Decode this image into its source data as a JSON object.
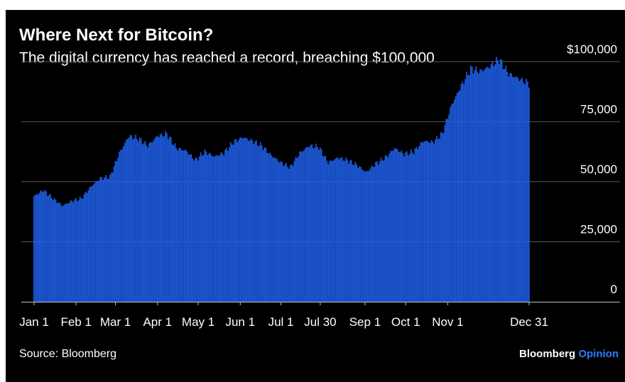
{
  "chart_data": {
    "type": "bar",
    "title": "Where Next for Bitcoin?",
    "subtitle": "The digital currency has reached a record, breaching $100,000",
    "source": "Source: Bloomberg",
    "brand": {
      "primary": "Bloomberg",
      "accent": "Opinion"
    },
    "colors": {
      "background": "#000000",
      "bar": "#1f5fe8",
      "grid": "#5a5a5a",
      "text": "#ffffff",
      "brand_accent": "#2b7cff"
    },
    "ylim": [
      0,
      110000
    ],
    "y_ticks": [
      {
        "value": 100000,
        "label": "$100,000"
      },
      {
        "value": 75000,
        "label": "75,000"
      },
      {
        "value": 50000,
        "label": "50,000"
      },
      {
        "value": 25000,
        "label": "25,000"
      },
      {
        "value": 0,
        "label": "0"
      }
    ],
    "x_ticks": [
      {
        "date": "2024-01-01",
        "label": "Jan 1"
      },
      {
        "date": "2024-02-01",
        "label": "Feb 1"
      },
      {
        "date": "2024-03-01",
        "label": "Mar 1"
      },
      {
        "date": "2024-04-01",
        "label": "Apr 1"
      },
      {
        "date": "2024-05-01",
        "label": "May 1"
      },
      {
        "date": "2024-06-01",
        "label": "Jun 1"
      },
      {
        "date": "2024-07-01",
        "label": "Jul 1"
      },
      {
        "date": "2024-07-30",
        "label": "Jul 30"
      },
      {
        "date": "2024-09-01",
        "label": "Sep 1"
      },
      {
        "date": "2024-10-01",
        "label": "Oct 1"
      },
      {
        "date": "2024-11-01",
        "label": "Nov 1"
      },
      {
        "date": "2024-12-31",
        "label": "Dec 31"
      }
    ],
    "grid": true,
    "series": [
      {
        "x": [
          "2024-01-01",
          "2024-01-08",
          "2024-01-15",
          "2024-01-22",
          "2024-01-29",
          "2024-02-05",
          "2024-02-12",
          "2024-02-19",
          "2024-02-26",
          "2024-03-04",
          "2024-03-11",
          "2024-03-18",
          "2024-03-25",
          "2024-04-01",
          "2024-04-08",
          "2024-04-15",
          "2024-04-22",
          "2024-04-29",
          "2024-05-06",
          "2024-05-13",
          "2024-05-20",
          "2024-05-27",
          "2024-06-03",
          "2024-06-10",
          "2024-06-17",
          "2024-06-24",
          "2024-07-01",
          "2024-07-08",
          "2024-07-15",
          "2024-07-22",
          "2024-07-29",
          "2024-08-05",
          "2024-08-12",
          "2024-08-19",
          "2024-08-26",
          "2024-09-02",
          "2024-09-09",
          "2024-09-16",
          "2024-09-23",
          "2024-09-30",
          "2024-10-07",
          "2024-10-14",
          "2024-10-21",
          "2024-10-28",
          "2024-11-04",
          "2024-11-11",
          "2024-11-18",
          "2024-11-25",
          "2024-12-02",
          "2024-12-09",
          "2024-12-16",
          "2024-12-23",
          "2024-12-31"
        ],
        "values": [
          44000,
          46500,
          43000,
          40000,
          42000,
          43000,
          48000,
          51500,
          52000,
          62000,
          69000,
          68000,
          65000,
          69000,
          70000,
          64000,
          63000,
          59000,
          62500,
          60500,
          62000,
          66500,
          68500,
          67000,
          65000,
          61000,
          58000,
          56000,
          62000,
          65000,
          64500,
          58000,
          60000,
          59000,
          57000,
          54000,
          57500,
          60000,
          64000,
          61500,
          62500,
          67000,
          66500,
          70000,
          82000,
          90000,
          97000,
          96000,
          98000,
          101000,
          95000,
          93000,
          91000
        ]
      }
    ]
  }
}
